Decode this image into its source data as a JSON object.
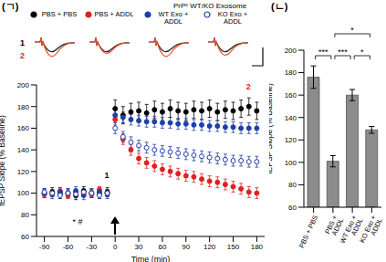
{
  "chart_data": [
    {
      "type": "scatter",
      "title": "(ㄱ)",
      "subtitle": "PrPᶜ WT/KO Exosome",
      "x_label": "Time (min)",
      "y_label": "fEPSP Slope (% Baseline)",
      "xlim": [
        -100,
        190
      ],
      "xticks": [
        -90,
        -60,
        -30,
        0,
        30,
        60,
        90,
        120,
        150,
        180
      ],
      "ylim": [
        60,
        200
      ],
      "yticks": [
        60,
        80,
        100,
        120,
        140,
        160,
        180,
        200
      ],
      "annotations": [
        "1",
        "2",
        "* #"
      ],
      "x": [
        -90,
        -80,
        -70,
        -60,
        -50,
        -40,
        -30,
        -20,
        -10,
        0,
        10,
        20,
        30,
        40,
        50,
        60,
        70,
        80,
        90,
        100,
        110,
        120,
        130,
        140,
        150,
        160,
        170,
        180
      ],
      "series": [
        {
          "name": "PBS + PBS",
          "color": "#000000",
          "marker": "circle",
          "values": [
            100,
            101,
            99,
            100,
            98,
            102,
            100,
            99,
            101,
            178,
            172,
            175,
            176,
            174,
            177,
            175,
            178,
            176,
            175,
            177,
            176,
            178,
            175,
            177,
            176,
            178,
            180,
            176
          ],
          "errors": [
            4,
            4,
            4,
            4,
            4,
            4,
            4,
            4,
            4,
            8,
            8,
            8,
            8,
            8,
            8,
            8,
            8,
            8,
            8,
            8,
            8,
            8,
            8,
            8,
            8,
            8,
            8,
            8
          ]
        },
        {
          "name": "PBS + ADDL",
          "color": "#e02020",
          "marker": "circle",
          "values": [
            99,
            100,
            102,
            98,
            101,
            100,
            99,
            103,
            100,
            168,
            150,
            140,
            132,
            128,
            125,
            122,
            120,
            118,
            116,
            115,
            113,
            111,
            110,
            108,
            106,
            104,
            101,
            100
          ],
          "errors": [
            3,
            3,
            3,
            3,
            3,
            3,
            3,
            3,
            3,
            5,
            5,
            5,
            5,
            5,
            5,
            5,
            5,
            5,
            5,
            5,
            5,
            5,
            5,
            5,
            5,
            5,
            5,
            5
          ]
        },
        {
          "name": "WT Exo + ADDL",
          "color": "#1f3fa8",
          "marker": "circle",
          "values": [
            100,
            99,
            101,
            100,
            102,
            98,
            100,
            101,
            99,
            172,
            170,
            168,
            167,
            166,
            166,
            165,
            165,
            164,
            164,
            163,
            163,
            162,
            162,
            161,
            161,
            160,
            160,
            160
          ],
          "errors": [
            4,
            4,
            4,
            4,
            4,
            4,
            4,
            4,
            4,
            5,
            5,
            5,
            5,
            5,
            5,
            5,
            5,
            5,
            5,
            5,
            5,
            5,
            5,
            5,
            5,
            5,
            5,
            5
          ]
        },
        {
          "name": "KO Exo + ADDL",
          "color": "#1f3fa8",
          "marker": "open_circle",
          "values": [
            101,
            100,
            98,
            100,
            99,
            101,
            100,
            98,
            100,
            160,
            152,
            147,
            144,
            142,
            140,
            139,
            138,
            137,
            136,
            135,
            134,
            133,
            132,
            131,
            130,
            130,
            129,
            129
          ],
          "errors": [
            3,
            3,
            3,
            3,
            3,
            3,
            3,
            3,
            3,
            5,
            5,
            5,
            5,
            5,
            5,
            5,
            5,
            5,
            5,
            5,
            5,
            5,
            5,
            5,
            5,
            5,
            5,
            5
          ]
        }
      ]
    },
    {
      "type": "bar",
      "title": "(ㄴ)",
      "y_label": "fEPSP Slope (% Baseline)",
      "categories": [
        "PBS + PBS",
        "PBS + ADDL",
        "WT Exo + ADDL",
        "KO Exo + ADDL"
      ],
      "values": [
        176,
        101,
        160,
        129
      ],
      "errors": [
        10,
        5,
        5,
        3
      ],
      "colors": [
        "#8c8c8c",
        "#8c8c8c",
        "#8c8c8c",
        "#8c8c8c"
      ],
      "ylim": [
        60,
        200
      ],
      "yticks": [
        60,
        80,
        100,
        120,
        140,
        160,
        180,
        200
      ],
      "significance": [
        {
          "between": [
            0,
            1
          ],
          "label": "***"
        },
        {
          "between": [
            1,
            2
          ],
          "label": "***"
        },
        {
          "between": [
            2,
            3
          ],
          "label": "*"
        },
        {
          "between": [
            1,
            3
          ],
          "label": "*"
        }
      ]
    }
  ]
}
